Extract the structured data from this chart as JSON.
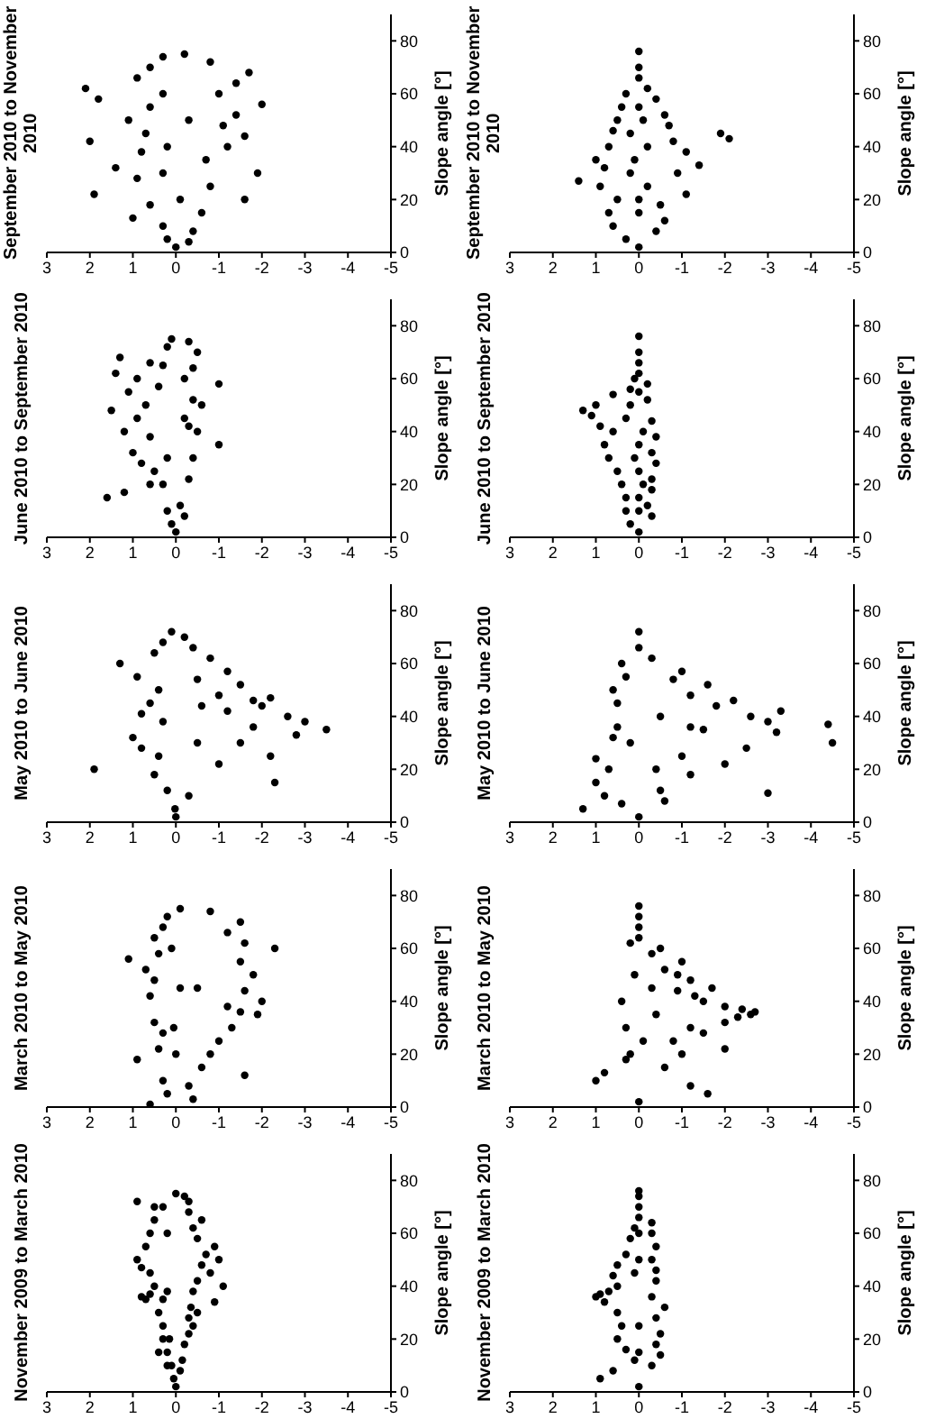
{
  "chart_data": [
    {
      "type": "scatter",
      "title": "November 2009 to March 2010",
      "ylabel": "Slope angle [°]",
      "ylim": [
        0,
        90
      ],
      "yticks": [
        0,
        20,
        40,
        60,
        80
      ],
      "xlim": [
        3,
        -5
      ],
      "xticks": [
        3,
        2,
        1,
        0,
        -1,
        -2,
        -3,
        -4,
        -5
      ],
      "color": "#000000",
      "marker": "circle",
      "values": [
        2,
        5,
        8,
        10,
        12,
        15,
        18,
        20,
        22,
        25,
        28,
        30,
        32,
        35,
        36,
        37,
        38,
        40,
        42,
        45,
        48,
        50,
        52,
        55,
        58,
        60,
        62,
        65,
        68,
        70,
        72,
        74,
        75,
        15,
        25,
        35,
        38,
        45,
        50,
        55,
        60,
        65,
        70,
        72,
        40,
        47,
        34,
        30,
        20,
        10
      ],
      "x": [
        0,
        0.05,
        -0.1,
        0.1,
        -0.15,
        0.2,
        -0.2,
        0.15,
        -0.3,
        0.3,
        -0.3,
        0.4,
        -0.35,
        0.7,
        0.8,
        0.6,
        -0.4,
        0.5,
        -0.5,
        0.6,
        -0.6,
        0.9,
        -0.7,
        0.7,
        -0.5,
        0.6,
        -0.4,
        0.5,
        -0.3,
        0.3,
        0.9,
        -0.2,
        0,
        0.4,
        -0.4,
        0.3,
        0.2,
        -0.8,
        -1,
        -0.9,
        0.2,
        -0.6,
        0.5,
        -0.3,
        -1.1,
        0.8,
        -0.9,
        -0.5,
        0.3,
        0.2
      ]
    },
    {
      "type": "scatter",
      "title": "March 2010 to May 2010",
      "ylabel": "Slope angle [°]",
      "ylim": [
        0,
        90
      ],
      "yticks": [
        0,
        20,
        40,
        60,
        80
      ],
      "xlim": [
        3,
        -5
      ],
      "xticks": [
        3,
        2,
        1,
        0,
        -1,
        -2,
        -3,
        -4,
        -5
      ],
      "color": "#000000",
      "marker": "circle",
      "values": [
        1,
        3,
        5,
        8,
        10,
        12,
        15,
        18,
        20,
        22,
        25,
        28,
        30,
        32,
        35,
        36,
        38,
        40,
        42,
        44,
        45,
        48,
        50,
        52,
        55,
        56,
        58,
        60,
        62,
        64,
        66,
        68,
        70,
        72,
        74,
        75,
        45,
        30,
        60,
        20
      ],
      "x": [
        0.6,
        -0.4,
        0.2,
        -0.3,
        0.3,
        -1.6,
        -0.6,
        0.9,
        -0.8,
        0.4,
        -1.0,
        0.3,
        -1.3,
        0.5,
        -1.9,
        -1.5,
        -1.2,
        -2.0,
        0.6,
        -1.6,
        -0.5,
        0.5,
        -1.8,
        0.7,
        -1.5,
        1.1,
        0.4,
        -2.3,
        -1.6,
        0.5,
        -1.2,
        0.3,
        -1.5,
        0.2,
        -0.8,
        -0.1,
        -0.1,
        0.05,
        0.1,
        0
      ]
    },
    {
      "type": "scatter",
      "title": "May 2010 to June 2010",
      "ylabel": "Slope angle [°]",
      "ylim": [
        0,
        90
      ],
      "yticks": [
        0,
        20,
        40,
        60,
        80
      ],
      "xlim": [
        3,
        -5
      ],
      "xticks": [
        3,
        2,
        1,
        0,
        -1,
        -2,
        -3,
        -4,
        -5
      ],
      "color": "#000000",
      "marker": "circle",
      "values": [
        2,
        5,
        10,
        12,
        15,
        18,
        20,
        22,
        25,
        28,
        30,
        32,
        35,
        36,
        38,
        40,
        41,
        42,
        44,
        45,
        46,
        48,
        50,
        52,
        54,
        55,
        57,
        60,
        62,
        64,
        66,
        68,
        70,
        72,
        44,
        38,
        30,
        25,
        33,
        47
      ],
      "x": [
        0,
        0.02,
        -0.3,
        0.2,
        -2.3,
        0.5,
        1.9,
        -1.0,
        -2.2,
        0.8,
        -1.5,
        1.0,
        -3.5,
        -1.8,
        -3.0,
        -2.6,
        0.8,
        -1.2,
        -0.6,
        0.6,
        -1.8,
        -1.0,
        0.4,
        -1.5,
        -0.5,
        0.9,
        -1.2,
        1.3,
        -0.8,
        0.5,
        -0.4,
        0.3,
        -0.2,
        0.1,
        -2.0,
        0.3,
        -0.5,
        0.4,
        -2.8,
        -2.2
      ]
    },
    {
      "type": "scatter",
      "title": "June 2010 to September 2010",
      "ylabel": "Slope angle [°]",
      "ylim": [
        0,
        90
      ],
      "yticks": [
        0,
        20,
        40,
        60,
        80
      ],
      "xlim": [
        3,
        -5
      ],
      "xticks": [
        3,
        2,
        1,
        0,
        -1,
        -2,
        -3,
        -4,
        -5
      ],
      "color": "#000000",
      "marker": "circle",
      "values": [
        2,
        5,
        8,
        10,
        15,
        17,
        20,
        22,
        25,
        28,
        30,
        32,
        35,
        38,
        40,
        42,
        45,
        48,
        50,
        52,
        55,
        57,
        58,
        60,
        62,
        64,
        66,
        68,
        70,
        72,
        74,
        75,
        30,
        45,
        60,
        20,
        40,
        50,
        65,
        12
      ],
      "x": [
        0,
        0.1,
        -0.2,
        0.2,
        1.6,
        1.2,
        0.3,
        -0.3,
        0.5,
        0.8,
        -0.4,
        1.0,
        -1.0,
        0.6,
        1.2,
        -0.3,
        0.9,
        1.5,
        0.7,
        -0.4,
        1.1,
        0.4,
        -1.0,
        0.9,
        1.4,
        -0.4,
        0.6,
        1.3,
        -0.5,
        0.2,
        -0.3,
        0.1,
        0.2,
        -0.2,
        -0.2,
        0.6,
        -0.5,
        -0.6,
        0.3,
        -0.1
      ]
    },
    {
      "type": "scatter",
      "title": "September 2010 to November 2010",
      "ylabel": "Slope angle [°]",
      "ylim": [
        0,
        90
      ],
      "yticks": [
        0,
        20,
        40,
        60,
        80
      ],
      "xlim": [
        3,
        -5
      ],
      "xticks": [
        3,
        2,
        1,
        0,
        -1,
        -2,
        -3,
        -4,
        -5
      ],
      "color": "#000000",
      "marker": "circle",
      "values": [
        2,
        4,
        5,
        8,
        10,
        13,
        15,
        18,
        20,
        22,
        25,
        28,
        30,
        32,
        35,
        38,
        40,
        42,
        44,
        45,
        48,
        50,
        52,
        55,
        56,
        58,
        60,
        62,
        64,
        66,
        68,
        70,
        72,
        74,
        75,
        30,
        50,
        60,
        40,
        20
      ],
      "x": [
        0,
        -0.3,
        0.2,
        -0.4,
        0.3,
        1.0,
        -0.6,
        0.6,
        -1.6,
        1.9,
        -0.8,
        0.9,
        -1.9,
        1.4,
        -0.7,
        0.8,
        -1.2,
        2.0,
        -1.6,
        0.7,
        -1.1,
        1.1,
        -1.4,
        0.6,
        -2.0,
        1.8,
        -1.0,
        2.1,
        -1.4,
        0.9,
        -1.7,
        0.6,
        -0.8,
        0.3,
        -0.2,
        0.3,
        -0.3,
        0.3,
        0.2,
        -0.1
      ]
    },
    {
      "type": "scatter",
      "title": "November 2009 to March 2010",
      "ylabel": "Slope angle [°]",
      "ylim": [
        0,
        90
      ],
      "yticks": [
        0,
        20,
        40,
        60,
        80
      ],
      "xlim": [
        3,
        -5
      ],
      "xticks": [
        3,
        2,
        1,
        0,
        -1,
        -2,
        -3,
        -4,
        -5
      ],
      "color": "#000000",
      "marker": "circle",
      "values": [
        2,
        5,
        8,
        10,
        12,
        14,
        16,
        18,
        20,
        22,
        25,
        28,
        30,
        32,
        34,
        36,
        37,
        38,
        40,
        42,
        44,
        46,
        48,
        50,
        52,
        55,
        58,
        60,
        62,
        64,
        66,
        70,
        74,
        76,
        36,
        45,
        25,
        15,
        50,
        60
      ],
      "x": [
        0,
        0.9,
        0.6,
        -0.3,
        0.1,
        -0.5,
        0.3,
        -0.4,
        0.5,
        -0.5,
        0.4,
        -0.4,
        0.5,
        -0.6,
        0.8,
        1.0,
        0.9,
        0.7,
        0.5,
        -0.4,
        0.6,
        -0.4,
        0.5,
        -0.3,
        0.3,
        -0.4,
        0.2,
        -0.3,
        0.1,
        -0.3,
        0,
        0,
        0,
        0,
        -0.3,
        0.1,
        0,
        0,
        0,
        0
      ]
    },
    {
      "type": "scatter",
      "title": "March 2010 to May 2010",
      "ylabel": "Slope angle [°]",
      "ylim": [
        0,
        90
      ],
      "yticks": [
        0,
        20,
        40,
        60,
        80
      ],
      "xlim": [
        3,
        -5
      ],
      "xticks": [
        3,
        2,
        1,
        0,
        -1,
        -2,
        -3,
        -4,
        -5
      ],
      "color": "#000000",
      "marker": "circle",
      "values": [
        2,
        5,
        8,
        10,
        13,
        15,
        18,
        20,
        22,
        25,
        28,
        30,
        32,
        34,
        35,
        36,
        37,
        38,
        40,
        42,
        44,
        45,
        48,
        50,
        52,
        55,
        58,
        60,
        62,
        64,
        68,
        72,
        76,
        30,
        40,
        45,
        20,
        25,
        50,
        35
      ],
      "x": [
        0,
        -1.6,
        -1.2,
        1.0,
        0.8,
        -0.6,
        0.3,
        -1.0,
        -2.0,
        -0.8,
        -1.5,
        -1.2,
        -2.0,
        -2.3,
        -2.6,
        -2.7,
        -2.4,
        -2.0,
        -1.5,
        -1.3,
        -0.9,
        -1.7,
        -1.2,
        -0.9,
        -0.6,
        -1.0,
        -0.3,
        -0.5,
        0.2,
        0,
        0,
        0,
        0,
        0.3,
        0.4,
        -0.3,
        0.2,
        -0.1,
        0.1,
        -0.4
      ]
    },
    {
      "type": "scatter",
      "title": "May 2010 to June 2010",
      "ylabel": "Slope angle [°]",
      "ylim": [
        0,
        90
      ],
      "yticks": [
        0,
        20,
        40,
        60,
        80
      ],
      "xlim": [
        3,
        -5
      ],
      "xticks": [
        3,
        2,
        1,
        0,
        -1,
        -2,
        -3,
        -4,
        -5
      ],
      "color": "#000000",
      "marker": "circle",
      "values": [
        2,
        5,
        7,
        8,
        10,
        12,
        15,
        18,
        20,
        22,
        24,
        25,
        28,
        30,
        32,
        34,
        35,
        36,
        37,
        38,
        40,
        42,
        44,
        45,
        46,
        48,
        50,
        52,
        54,
        55,
        57,
        60,
        62,
        66,
        72,
        11,
        36,
        30,
        20,
        40
      ],
      "x": [
        0,
        1.3,
        0.4,
        -0.6,
        0.8,
        -0.5,
        1.0,
        -1.2,
        0.7,
        -2.0,
        1.0,
        -1.0,
        -2.5,
        -4.5,
        0.6,
        -3.2,
        -1.5,
        0.5,
        -4.4,
        -3.0,
        -2.6,
        -3.3,
        -1.8,
        0.5,
        -2.2,
        -1.2,
        0.6,
        -1.6,
        -0.8,
        0.3,
        -1.0,
        0.4,
        -0.3,
        0,
        0,
        -3.0,
        -1.2,
        0.2,
        -0.4,
        -0.5
      ]
    },
    {
      "type": "scatter",
      "title": "June 2010 to September 2010",
      "ylabel": "Slope angle [°]",
      "ylim": [
        0,
        90
      ],
      "yticks": [
        0,
        20,
        40,
        60,
        80
      ],
      "xlim": [
        3,
        -5
      ],
      "xticks": [
        3,
        2,
        1,
        0,
        -1,
        -2,
        -3,
        -4,
        -5
      ],
      "color": "#000000",
      "marker": "circle",
      "values": [
        2,
        5,
        8,
        10,
        12,
        15,
        18,
        20,
        22,
        25,
        28,
        30,
        32,
        35,
        38,
        40,
        42,
        44,
        46,
        48,
        50,
        52,
        54,
        56,
        58,
        60,
        62,
        66,
        70,
        76,
        40,
        30,
        20,
        50,
        35,
        25,
        45,
        15,
        55,
        10
      ],
      "x": [
        0,
        0.2,
        -0.3,
        0.3,
        -0.2,
        0.3,
        -0.3,
        0.4,
        -0.3,
        0.5,
        -0.4,
        0.7,
        -0.3,
        0.8,
        -0.4,
        0.6,
        0.9,
        -0.3,
        1.1,
        1.3,
        1.0,
        -0.2,
        0.6,
        0.2,
        -0.2,
        0.1,
        0,
        0,
        0,
        0,
        -0.1,
        0.1,
        -0.1,
        0.2,
        0,
        0,
        0.3,
        0,
        0,
        0
      ]
    },
    {
      "type": "scatter",
      "title": "September 2010 to November 2010",
      "ylabel": "Slope angle [°]",
      "ylim": [
        0,
        90
      ],
      "yticks": [
        0,
        20,
        40,
        60,
        80
      ],
      "xlim": [
        3,
        -5
      ],
      "xticks": [
        3,
        2,
        1,
        0,
        -1,
        -2,
        -3,
        -4,
        -5
      ],
      "color": "#000000",
      "marker": "circle",
      "values": [
        2,
        5,
        8,
        10,
        12,
        15,
        18,
        20,
        22,
        25,
        27,
        30,
        32,
        33,
        35,
        38,
        40,
        42,
        43,
        45,
        46,
        48,
        50,
        52,
        55,
        58,
        60,
        62,
        66,
        70,
        76,
        30,
        40,
        20,
        50,
        35,
        25,
        45,
        15,
        55
      ],
      "x": [
        0,
        0.3,
        -0.4,
        0.6,
        -0.6,
        0.7,
        -0.5,
        0.5,
        -1.1,
        0.9,
        1.4,
        -0.9,
        0.8,
        -1.4,
        1.0,
        -1.1,
        0.7,
        -0.8,
        -2.1,
        -1.9,
        0.6,
        -0.7,
        0.5,
        -0.6,
        0.4,
        -0.4,
        0.3,
        -0.2,
        0,
        0,
        0,
        0.2,
        -0.2,
        0,
        -0.1,
        0.1,
        -0.2,
        0.2,
        0,
        0
      ]
    }
  ]
}
